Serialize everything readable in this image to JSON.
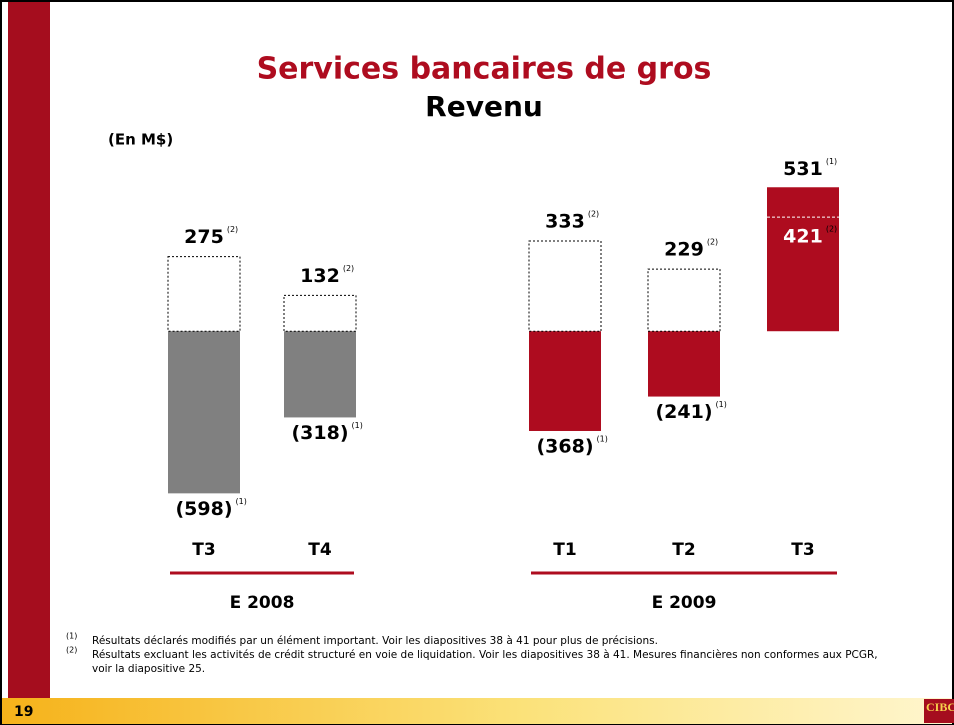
{
  "chart_data": {
    "type": "floating-bar",
    "title": "Services bancaires de gros",
    "subtitle": "Revenu",
    "unit_label": "(En M$)",
    "categories": [
      "T3",
      "T4",
      "T1",
      "T2",
      "T3"
    ],
    "groups": [
      {
        "label": "E 2008",
        "size": 2
      },
      {
        "label": "E 2009",
        "size": 3
      }
    ],
    "colors": [
      "#808080",
      "#808080",
      "#ae0c1f",
      "#ae0c1f",
      "#ae0c1f"
    ],
    "reported": {
      "note": "(1)",
      "values": [
        -598,
        -318,
        -368,
        -241,
        531
      ],
      "value_labels": [
        "(598)",
        "(318)",
        "(368)",
        "(241)",
        "531"
      ]
    },
    "adjusted": {
      "note": "(2)",
      "values": [
        275,
        132,
        333,
        229,
        421
      ]
    },
    "ylim": [
      -700,
      650
    ],
    "footnotes": [
      {
        "marker": "(1)",
        "text": "Résultats déclarés modifiés par un élément important. Voir les diapositives 38 à 41 pour plus de précisions."
      },
      {
        "marker": "(2)",
        "text": "Résultats excluant les activités de crédit structuré en voie de liquidation. Voir les diapositives 38 à 41. Mesures financières non conformes aux PCGR, voir la diapositive 25."
      }
    ],
    "page_number": "19",
    "logo": "CIBC"
  }
}
